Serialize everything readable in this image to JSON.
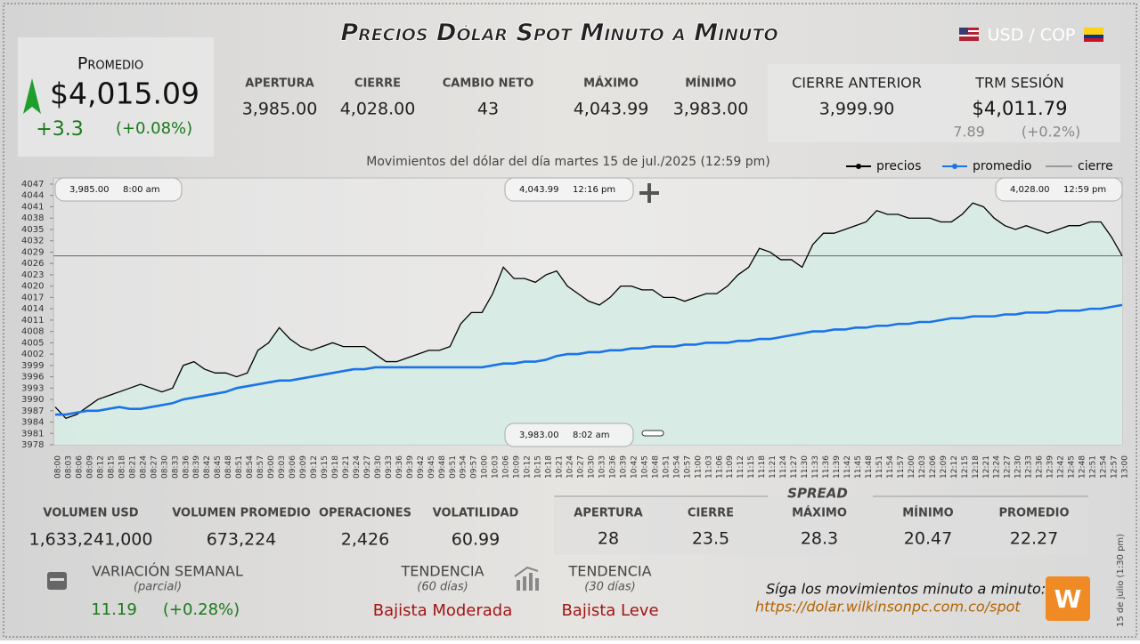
{
  "header": {
    "title": "Precios Dólar Spot Minuto a Minuto",
    "currency": "USD / COP"
  },
  "summary": {
    "label": "Promedio",
    "value": "$4,015.09",
    "change": "+3.3",
    "change_pct": "(+0.08%)"
  },
  "stats": [
    {
      "label": "APERTURA",
      "value": "3,985.00"
    },
    {
      "label": "CIERRE",
      "value": "4,028.00"
    },
    {
      "label": "CAMBIO NETO",
      "value": "43"
    },
    {
      "label": "MÁXIMO",
      "value": "4,043.99"
    },
    {
      "label": "MÍNIMO",
      "value": "3,983.00"
    }
  ],
  "previous_close": {
    "label": "CIERRE ANTERIOR",
    "value": "3,999.90"
  },
  "trm": {
    "label": "TRM SESIÓN",
    "value": "$4,011.79",
    "change": "7.89",
    "change_pct": "(+0.2%)"
  },
  "chart_data": {
    "type": "line",
    "subtitle": "Movimientos del dólar del día martes 15 de jul./2025 (12:59 pm)",
    "categories": [
      "08:00",
      "08:03",
      "08:06",
      "08:09",
      "08:12",
      "08:15",
      "08:18",
      "08:21",
      "08:24",
      "08:27",
      "08:30",
      "08:33",
      "08:36",
      "08:39",
      "08:42",
      "08:45",
      "08:48",
      "08:51",
      "08:54",
      "08:57",
      "09:00",
      "09:03",
      "09:06",
      "09:09",
      "09:12",
      "09:15",
      "09:18",
      "09:21",
      "09:24",
      "09:27",
      "09:30",
      "09:33",
      "09:36",
      "09:39",
      "09:42",
      "09:45",
      "09:48",
      "09:51",
      "09:54",
      "09:57",
      "10:00",
      "10:03",
      "10:06",
      "10:09",
      "10:12",
      "10:15",
      "10:18",
      "10:21",
      "10:24",
      "10:27",
      "10:30",
      "10:33",
      "10:36",
      "10:39",
      "10:42",
      "10:45",
      "10:48",
      "10:51",
      "10:54",
      "10:57",
      "11:00",
      "11:03",
      "11:06",
      "11:09",
      "11:12",
      "11:15",
      "11:18",
      "11:21",
      "11:24",
      "11:27",
      "11:30",
      "11:33",
      "11:36",
      "11:39",
      "11:42",
      "11:45",
      "11:48",
      "11:51",
      "11:54",
      "11:57",
      "12:00",
      "12:03",
      "12:06",
      "12:09",
      "12:12",
      "12:15",
      "12:18",
      "12:21",
      "12:24",
      "12:27",
      "12:30",
      "12:33",
      "12:36",
      "12:39",
      "12:42",
      "12:45",
      "12:48",
      "12:51",
      "12:54",
      "12:57",
      "13:00"
    ],
    "series": [
      {
        "name": "precios",
        "color": "#000000",
        "values": [
          3988,
          3985,
          3986,
          3988,
          3990,
          3991,
          3992,
          3993,
          3994,
          3993,
          3992,
          3993,
          3999,
          4000,
          3998,
          3997,
          3997,
          3996,
          3997,
          4003,
          4005,
          4009,
          4006,
          4004,
          4003,
          4004,
          4005,
          4004,
          4004,
          4004,
          4002,
          4000,
          4000,
          4001,
          4002,
          4003,
          4003,
          4004,
          4010,
          4013,
          4013,
          4018,
          4025,
          4022,
          4022,
          4021,
          4023,
          4024,
          4020,
          4018,
          4016,
          4015,
          4017,
          4020,
          4020,
          4019,
          4019,
          4017,
          4017,
          4016,
          4017,
          4018,
          4018,
          4020,
          4023,
          4025,
          4030,
          4029,
          4027,
          4027,
          4025,
          4031,
          4034,
          4034,
          4035,
          4036,
          4037,
          4040,
          4039,
          4039,
          4038,
          4038,
          4038,
          4037,
          4037,
          4039,
          4042,
          4041,
          4038,
          4036,
          4035,
          4036,
          4035,
          4034,
          4035,
          4036,
          4036,
          4037,
          4037,
          4033,
          4028
        ]
      },
      {
        "name": "promedio",
        "color": "#1a73e8",
        "values": [
          3986,
          3986,
          3986.5,
          3987,
          3987,
          3987.5,
          3988,
          3987.5,
          3987.5,
          3988,
          3988.5,
          3989,
          3990,
          3990.5,
          3991,
          3991.5,
          3992,
          3993,
          3993.5,
          3994,
          3994.5,
          3995,
          3995,
          3995.5,
          3996,
          3996.5,
          3997,
          3997.5,
          3998,
          3998,
          3998.5,
          3998.5,
          3998.5,
          3998.5,
          3998.5,
          3998.5,
          3998.5,
          3998.5,
          3998.5,
          3998.5,
          3998.5,
          3999,
          3999.5,
          3999.5,
          4000,
          4000,
          4000.5,
          4001.5,
          4002,
          4002,
          4002.5,
          4002.5,
          4003,
          4003,
          4003.5,
          4003.5,
          4004,
          4004,
          4004,
          4004.5,
          4004.5,
          4005,
          4005,
          4005,
          4005.5,
          4005.5,
          4006,
          4006,
          4006.5,
          4007,
          4007.5,
          4008,
          4008,
          4008.5,
          4008.5,
          4009,
          4009,
          4009.5,
          4009.5,
          4010,
          4010,
          4010.5,
          4010.5,
          4011,
          4011.5,
          4011.5,
          4012,
          4012,
          4012,
          4012.5,
          4012.5,
          4013,
          4013,
          4013,
          4013.5,
          4013.5,
          4013.5,
          4014,
          4014,
          4014.5,
          4015
        ]
      }
    ],
    "reference_lines": [
      {
        "name": "cierre",
        "value": 4028,
        "color": "#555555"
      }
    ],
    "ylim": [
      3978,
      4047
    ],
    "yticks": [
      3978,
      3981,
      3984,
      3987,
      3990,
      3993,
      3996,
      3999,
      4002,
      4005,
      4008,
      4011,
      4014,
      4017,
      4020,
      4023,
      4026,
      4029,
      4032,
      4035,
      4038,
      4041,
      4044,
      4047
    ],
    "area_color": "#d6ece4",
    "annotations": [
      {
        "text": "3,985.00",
        "time": "8:00 am"
      },
      {
        "text": "4,043.99",
        "time": "12:16 pm"
      },
      {
        "text": "4,028.00",
        "time": "12:59 pm"
      },
      {
        "text": "3,983.00",
        "time": "8:02 am"
      }
    ]
  },
  "bottom_stats": [
    {
      "label": "VOLUMEN USD",
      "value": "1,633,241,000"
    },
    {
      "label": "VOLUMEN PROMEDIO",
      "value": "673,224"
    },
    {
      "label": "OPERACIONES",
      "value": "2,426"
    },
    {
      "label": "VOLATILIDAD",
      "value": "60.99"
    }
  ],
  "spread": {
    "title": "SPREAD",
    "items": [
      {
        "label": "APERTURA",
        "value": "28"
      },
      {
        "label": "CIERRE",
        "value": "23.5"
      },
      {
        "label": "MÁXIMO",
        "value": "28.3"
      },
      {
        "label": "MÍNIMO",
        "value": "20.47"
      },
      {
        "label": "PROMEDIO",
        "value": "22.27"
      }
    ]
  },
  "weekly": {
    "label": "VARIACIÓN SEMANAL",
    "note": "(parcial)",
    "value": "11.19",
    "pct": "(+0.28%)"
  },
  "trends": [
    {
      "label": "TENDENCIA",
      "note": "(60 días)",
      "value": "Bajista Moderada"
    },
    {
      "label": "TENDENCIA",
      "note": "(30 días)",
      "value": "Bajista Leve"
    }
  ],
  "footer": {
    "cta": "Síga los movimientos minuto a minuto:",
    "url": "https://dolar.wilkinsonpc.com.co/spot",
    "timestamp": "15 de julio (1:30 pm)"
  }
}
